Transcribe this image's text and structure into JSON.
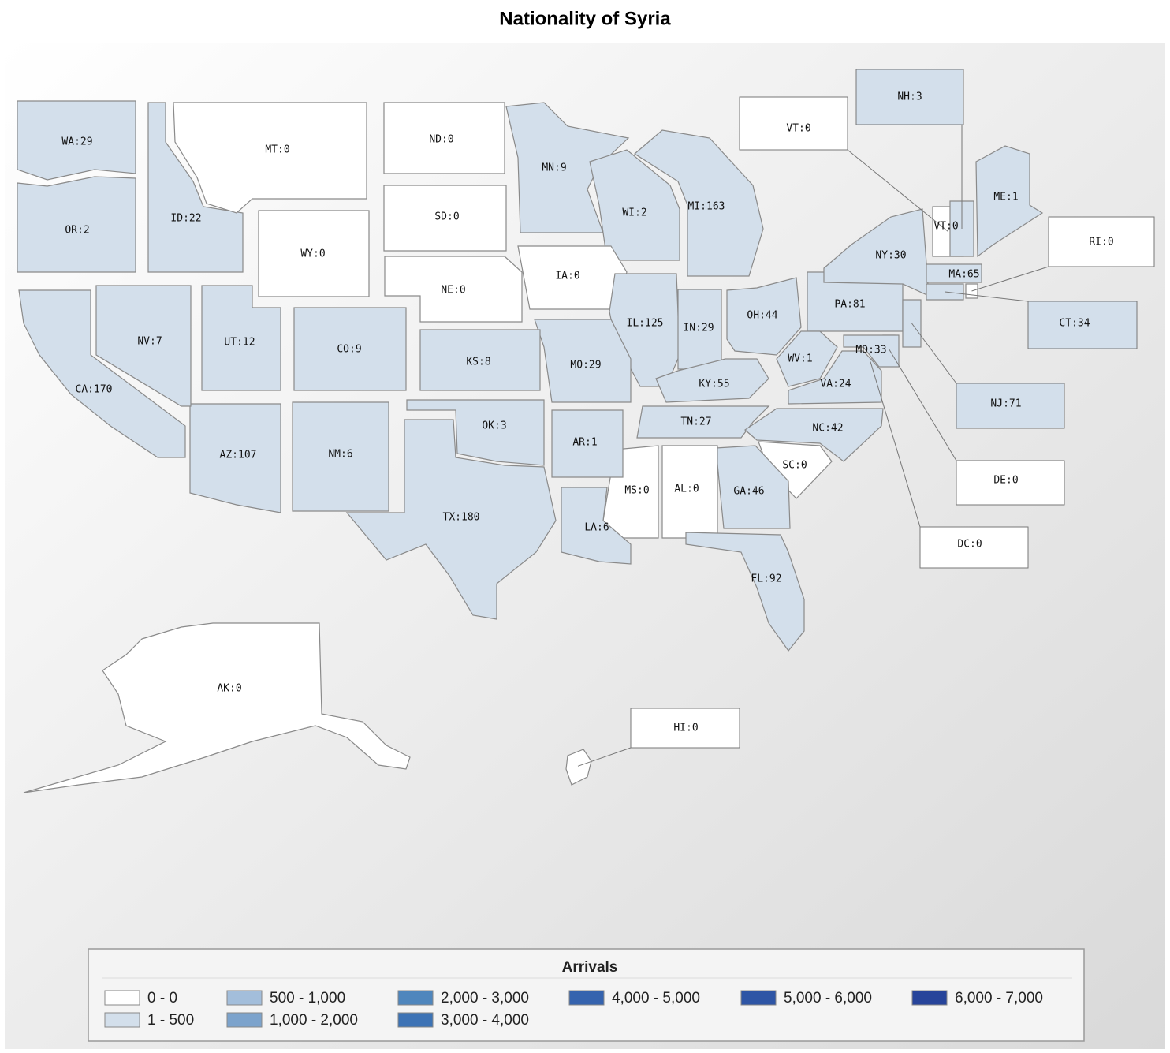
{
  "chart_data": {
    "type": "choropleth",
    "title": "Nationality of Syria",
    "legend_title": "Arrivals",
    "bins": [
      {
        "label": "0 - 0",
        "range": [
          0,
          0
        ],
        "color": "#ffffff"
      },
      {
        "label": "1 - 500",
        "range": [
          1,
          500
        ],
        "color": "#d3dfeb"
      },
      {
        "label": "500 - 1,000",
        "range": [
          500,
          1000
        ],
        "color": "#a3bedb"
      },
      {
        "label": "1,000 - 2,000",
        "range": [
          1000,
          2000
        ],
        "color": "#7ca3cc"
      },
      {
        "label": "2,000 - 3,000",
        "range": [
          2000,
          3000
        ],
        "color": "#4f86bd"
      },
      {
        "label": "3,000 - 4,000",
        "range": [
          3000,
          4000
        ],
        "color": "#3d73b5"
      },
      {
        "label": "4,000 - 5,000",
        "range": [
          4000,
          5000
        ],
        "color": "#3563ae"
      },
      {
        "label": "5,000 - 6,000",
        "range": [
          5000,
          6000
        ],
        "color": "#2e55a5"
      },
      {
        "label": "6,000 - 7,000",
        "range": [
          6000,
          7000
        ],
        "color": "#27449a"
      }
    ],
    "states": [
      {
        "label": "WA:29",
        "value": 29
      },
      {
        "label": "OR:2",
        "value": 2
      },
      {
        "label": "ID:22",
        "value": 22
      },
      {
        "label": "MT:0",
        "value": 0
      },
      {
        "label": "WY:0",
        "value": 0
      },
      {
        "label": "ND:0",
        "value": 0
      },
      {
        "label": "SD:0",
        "value": 0
      },
      {
        "label": "NE:0",
        "value": 0
      },
      {
        "label": "MN:9",
        "value": 9
      },
      {
        "label": "WI:2",
        "value": 2
      },
      {
        "label": "MI:163",
        "value": 163
      },
      {
        "label": "IA:0",
        "value": 0
      },
      {
        "label": "IL:125",
        "value": 125
      },
      {
        "label": "IN:29",
        "value": 29
      },
      {
        "label": "OH:44",
        "value": 44
      },
      {
        "label": "PA:81",
        "value": 81
      },
      {
        "label": "NY:30",
        "value": 30
      },
      {
        "label": "ME:1",
        "value": 1
      },
      {
        "label": "VT:0",
        "value": 0
      },
      {
        "label": "NH:3",
        "value": 3
      },
      {
        "label": "MA:65",
        "value": 65
      },
      {
        "label": "RI:0",
        "value": 0
      },
      {
        "label": "CT:34",
        "value": 34
      },
      {
        "label": "NJ:71",
        "value": 71
      },
      {
        "label": "DE:0",
        "value": 0
      },
      {
        "label": "DC:0",
        "value": 0
      },
      {
        "label": "MD:33",
        "value": 33
      },
      {
        "label": "WV:1",
        "value": 1
      },
      {
        "label": "VA:24",
        "value": 24
      },
      {
        "label": "KY:55",
        "value": 55
      },
      {
        "label": "TN:27",
        "value": 27
      },
      {
        "label": "NC:42",
        "value": 42
      },
      {
        "label": "SC:0",
        "value": 0
      },
      {
        "label": "GA:46",
        "value": 46
      },
      {
        "label": "AL:0",
        "value": 0
      },
      {
        "label": "MS:0",
        "value": 0
      },
      {
        "label": "FL:92",
        "value": 92
      },
      {
        "label": "LA:6",
        "value": 6
      },
      {
        "label": "AR:1",
        "value": 1
      },
      {
        "label": "MO:29",
        "value": 29
      },
      {
        "label": "KS:8",
        "value": 8
      },
      {
        "label": "OK:3",
        "value": 3
      },
      {
        "label": "TX:180",
        "value": 180
      },
      {
        "label": "NM:6",
        "value": 6
      },
      {
        "label": "AZ:107",
        "value": 107
      },
      {
        "label": "CO:9",
        "value": 9
      },
      {
        "label": "UT:12",
        "value": 12
      },
      {
        "label": "NV:7",
        "value": 7
      },
      {
        "label": "CA:170",
        "value": 170
      },
      {
        "label": "AK:0",
        "value": 0
      },
      {
        "label": "HI:0",
        "value": 0
      }
    ]
  }
}
